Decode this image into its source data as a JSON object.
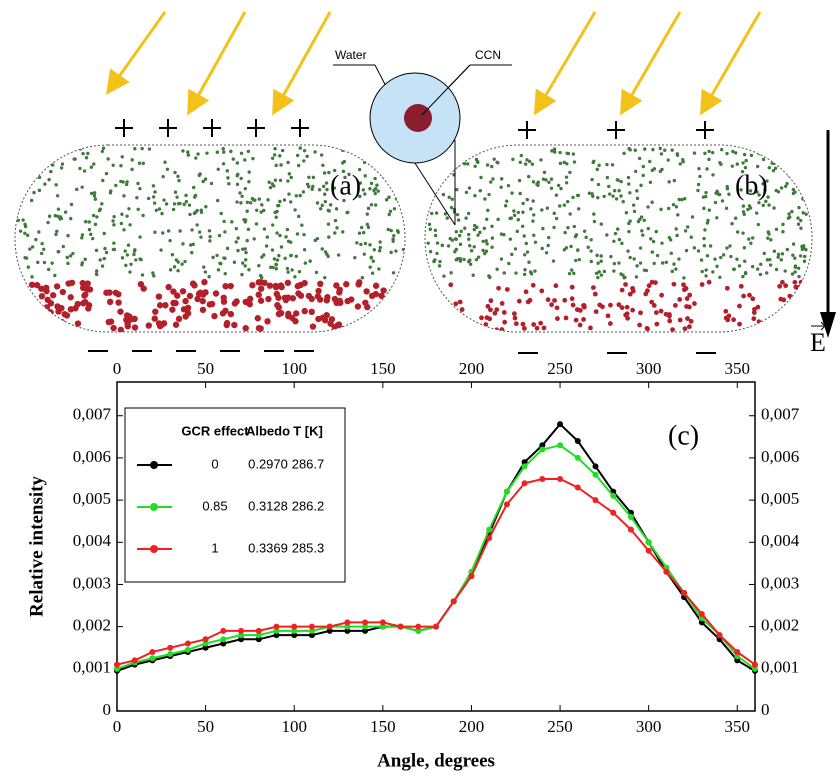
{
  "illustration": {
    "water": "Water",
    "ccn": "CCN",
    "panel_a": "(a)",
    "panel_b": "(b)",
    "field": "E"
  },
  "chart_data": {
    "type": "line",
    "panel_label": "(c)",
    "x_label": "Angle, degrees",
    "y_label": "Relative intensity",
    "x": [
      0,
      10,
      20,
      30,
      40,
      50,
      60,
      70,
      80,
      90,
      100,
      110,
      120,
      130,
      140,
      150,
      160,
      170,
      180,
      190,
      200,
      210,
      220,
      230,
      240,
      250,
      260,
      270,
      280,
      290,
      300,
      310,
      320,
      330,
      340,
      350,
      360
    ],
    "series": [
      {
        "name": "0",
        "color": "#000000",
        "values": [
          0.00095,
          0.0011,
          0.0012,
          0.0013,
          0.0014,
          0.0015,
          0.0016,
          0.0017,
          0.0017,
          0.0018,
          0.0018,
          0.0018,
          0.0019,
          0.0019,
          0.0019,
          0.002,
          0.002,
          0.0019,
          0.002,
          0.0026,
          0.0032,
          0.0042,
          0.0052,
          0.0059,
          0.0063,
          0.0068,
          0.0064,
          0.0058,
          0.0052,
          0.0047,
          0.004,
          0.0033,
          0.0027,
          0.0021,
          0.0017,
          0.0012,
          0.00095
        ]
      },
      {
        "name": "0.85",
        "color": "#22dd22",
        "values": [
          0.001,
          0.00115,
          0.00125,
          0.00135,
          0.00145,
          0.0016,
          0.0017,
          0.0018,
          0.0018,
          0.0019,
          0.0019,
          0.0019,
          0.002,
          0.002,
          0.002,
          0.002,
          0.002,
          0.0019,
          0.002,
          0.0026,
          0.0033,
          0.0043,
          0.0052,
          0.0058,
          0.0062,
          0.0063,
          0.006,
          0.0056,
          0.0051,
          0.0046,
          0.004,
          0.0034,
          0.0028,
          0.0022,
          0.0018,
          0.0013,
          0.001
        ]
      },
      {
        "name": "1",
        "color": "#ee2222",
        "values": [
          0.0011,
          0.0012,
          0.0014,
          0.0015,
          0.0016,
          0.0017,
          0.0019,
          0.0019,
          0.0019,
          0.002,
          0.002,
          0.002,
          0.002,
          0.0021,
          0.0021,
          0.0021,
          0.002,
          0.002,
          0.002,
          0.0026,
          0.0032,
          0.0041,
          0.0049,
          0.0054,
          0.0055,
          0.0055,
          0.0053,
          0.005,
          0.0047,
          0.0043,
          0.0038,
          0.0033,
          0.0028,
          0.0023,
          0.0018,
          0.0014,
          0.0011
        ]
      }
    ],
    "xlim": [
      0,
      360
    ],
    "xticks": [
      0,
      50,
      100,
      150,
      200,
      250,
      300,
      350
    ],
    "ylim": [
      0,
      0.0078
    ],
    "yticks": [
      0,
      {
        "value": 0.001,
        "label": "0,001"
      },
      {
        "value": 0.002,
        "label": "0,002"
      },
      {
        "value": 0.003,
        "label": "0,003"
      },
      {
        "value": 0.004,
        "label": "0,004"
      },
      {
        "value": 0.005,
        "label": "0,005"
      },
      {
        "value": 0.006,
        "label": "0,006"
      },
      {
        "value": 0.007,
        "label": "0,007"
      }
    ],
    "legend_table": {
      "headers": [
        "GCR effect",
        "Albedo",
        "T [K]"
      ],
      "rows": [
        [
          "0.2970",
          "286.7"
        ],
        [
          "0.3128",
          "286.2"
        ],
        [
          "0.3369",
          "285.3"
        ]
      ]
    }
  }
}
